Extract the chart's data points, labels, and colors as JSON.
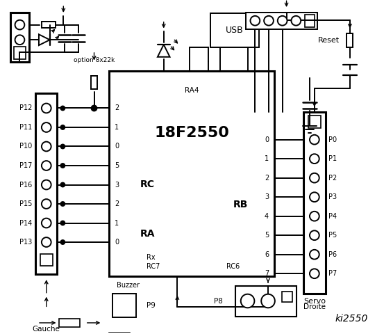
{
  "bg_color": "#ffffff",
  "title": "ki2550",
  "chip_label": "18F2550",
  "left_labels": [
    "P12",
    "P11",
    "P10",
    "P17",
    "P16",
    "P15",
    "P14",
    "P13"
  ],
  "right_labels": [
    "P0",
    "P1",
    "P2",
    "P3",
    "P4",
    "P5",
    "P6",
    "P7"
  ],
  "rc_pins": [
    "2",
    "1",
    "0",
    "5",
    "3",
    "2",
    "1",
    "0"
  ],
  "rb_pins": [
    "0",
    "1",
    "2",
    "3",
    "4",
    "5",
    "6",
    "7"
  ],
  "rc_label": "RC",
  "ra_label": "RA",
  "rb_label": "RB",
  "rx_label": "Rx",
  "rc7_label": "RC7",
  "rc6_label": "RC6",
  "ra4_label": "RA4",
  "gauche_label": "Gauche",
  "droite_label": "Droite",
  "buzzer_label": "Buzzer",
  "p9_label": "P9",
  "p8_label": "P8",
  "servo_label": "Servo",
  "reset_label": "Reset",
  "option_label": "option 8x22k",
  "usb_label": "USB"
}
